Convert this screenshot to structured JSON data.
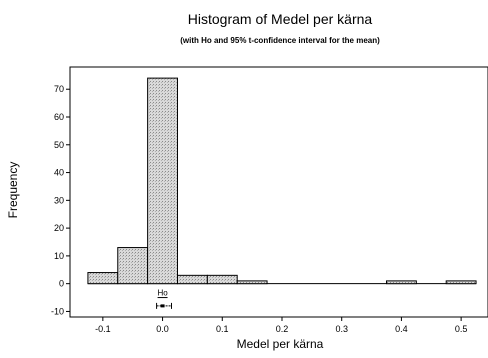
{
  "chart_data": {
    "type": "bar",
    "title": "Histogram of Medel per kärna",
    "subtitle": "(with Ho and 95% t-confidence interval for the mean)",
    "xlabel": "Medel per kärna",
    "ylabel": "Frequency",
    "xlim": [
      -0.155,
      0.545
    ],
    "ylim": [
      -12,
      78
    ],
    "xticks": [
      -0.1,
      0.0,
      0.1,
      0.2,
      0.3,
      0.4,
      0.5
    ],
    "xtick_labels": [
      "-0.1",
      "0.0",
      "0.1",
      "0.2",
      "0.3",
      "0.4",
      "0.5"
    ],
    "yticks": [
      -10,
      0,
      10,
      20,
      30,
      40,
      50,
      60,
      70
    ],
    "ytick_labels": [
      "-10",
      "0",
      "10",
      "20",
      "30",
      "40",
      "50",
      "60",
      "70"
    ],
    "bins": [
      {
        "x0": -0.125,
        "x1": -0.075,
        "count": 4
      },
      {
        "x0": -0.075,
        "x1": -0.025,
        "count": 13
      },
      {
        "x0": -0.025,
        "x1": 0.025,
        "count": 74
      },
      {
        "x0": 0.025,
        "x1": 0.075,
        "count": 3
      },
      {
        "x0": 0.075,
        "x1": 0.125,
        "count": 3
      },
      {
        "x0": 0.125,
        "x1": 0.175,
        "count": 1
      },
      {
        "x0": 0.175,
        "x1": 0.225,
        "count": 0
      },
      {
        "x0": 0.225,
        "x1": 0.275,
        "count": 0
      },
      {
        "x0": 0.275,
        "x1": 0.325,
        "count": 0
      },
      {
        "x0": 0.325,
        "x1": 0.375,
        "count": 0
      },
      {
        "x0": 0.375,
        "x1": 0.425,
        "count": 1
      },
      {
        "x0": 0.425,
        "x1": 0.475,
        "count": 0
      },
      {
        "x0": 0.475,
        "x1": 0.525,
        "count": 1
      }
    ],
    "ho": {
      "label": "Ho",
      "x": 0.0,
      "y": -5
    },
    "ci": {
      "lower": -0.01,
      "upper": 0.015,
      "mean": 0.0,
      "y": -8
    },
    "grid": false,
    "bar_fill": "#d9d9d9"
  }
}
